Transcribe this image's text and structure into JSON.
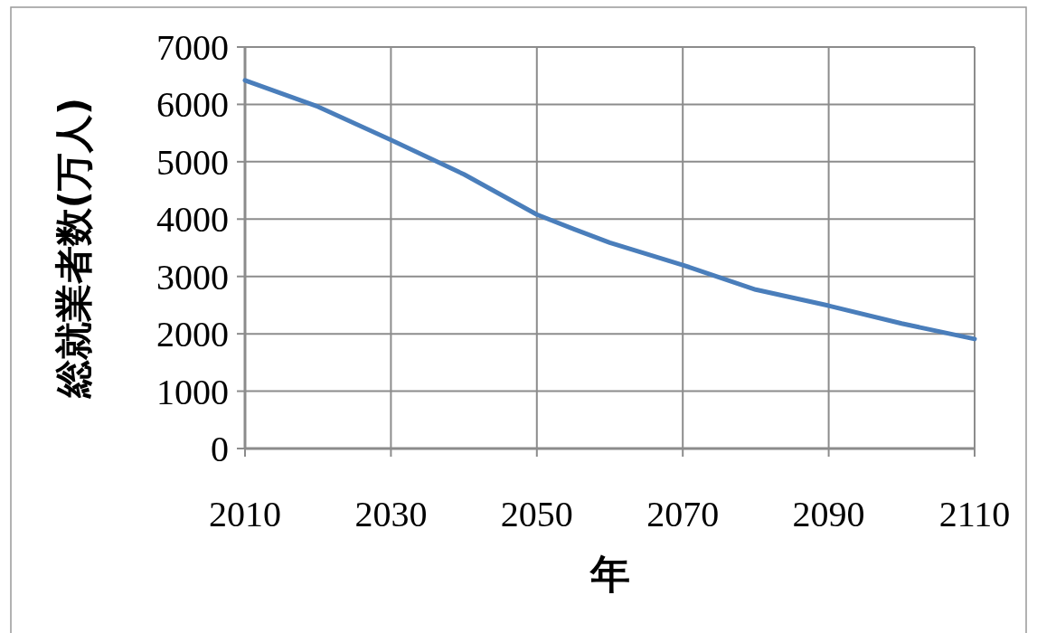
{
  "chart_data": {
    "type": "line",
    "xlabel": "年",
    "ylabel": "総就業者数(万人)",
    "x": [
      2010,
      2020,
      2030,
      2040,
      2050,
      2055,
      2060,
      2070,
      2080,
      2090,
      2100,
      2110
    ],
    "series": [
      {
        "color": "#4a7ebb",
        "values": [
          6420,
          5960,
          5380,
          4780,
          4080,
          3830,
          3590,
          3200,
          2770,
          2490,
          2180,
          1910
        ]
      }
    ],
    "xlim": [
      2010,
      2110
    ],
    "xticks": [
      2010,
      2030,
      2050,
      2070,
      2090,
      2110
    ],
    "ylim": [
      0,
      7000
    ],
    "yticks": [
      0,
      1000,
      2000,
      3000,
      4000,
      5000,
      6000,
      7000
    ],
    "grid": true
  }
}
